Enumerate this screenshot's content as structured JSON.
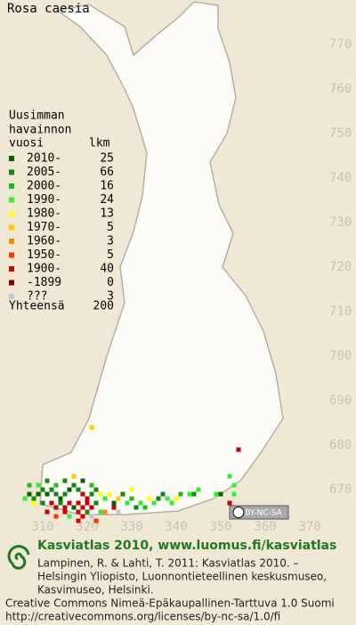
{
  "title": "Rosa caesia",
  "legend": {
    "header": [
      "Uusimman",
      "havainnon"
    ],
    "col_year": "vuosi",
    "col_count": "lkm",
    "items": [
      {
        "label": "2010-",
        "count": 25,
        "color": "#006400"
      },
      {
        "label": "2005-",
        "count": 66,
        "color": "#118811"
      },
      {
        "label": "2000-",
        "count": 16,
        "color": "#22bb22"
      },
      {
        "label": "1990-",
        "count": 24,
        "color": "#33ee33"
      },
      {
        "label": "1980-",
        "count": 13,
        "color": "#ffff00"
      },
      {
        "label": "1970-",
        "count": 5,
        "color": "#ffcc00"
      },
      {
        "label": "1960-",
        "count": 3,
        "color": "#ff8800"
      },
      {
        "label": "1950-",
        "count": 5,
        "color": "#ff3300"
      },
      {
        "label": "1900-",
        "count": 40,
        "color": "#cc0000"
      },
      {
        "label": "-1899",
        "count": 0,
        "color": "#880000"
      },
      {
        "label": "???",
        "count": 3,
        "color": "#c8c8c8"
      }
    ],
    "total_label": "Yhteensä",
    "total": 200
  },
  "yticks": [
    770,
    760,
    750,
    740,
    730,
    720,
    710,
    700,
    690,
    680,
    670
  ],
  "xticks": [
    310,
    320,
    330,
    340,
    350,
    360,
    370
  ],
  "license_badge": "BY-NC-SA",
  "footer": {
    "heading": "Kasviatlas 2010, www.luomus.fi/kasviatlas",
    "citation": [
      "Lampinen, R. & Lahti, T. 2011: Kasviatlas 2010. –",
      "Helsingin Yliopisto, Luonnontieteellinen keskusmuseo,",
      "Kasvimuseo, Helsinki."
    ],
    "license": [
      "Creative Commons Nimeä-Epäkaupallinen-Tarttuva 1.0 Suomi",
      "http://creativecommons.org/licenses/by-nc-sa/1.0/fi"
    ]
  },
  "cells": [
    [
      307,
      669,
      0
    ],
    [
      308,
      668,
      1
    ],
    [
      309,
      669,
      0
    ],
    [
      310,
      670,
      1
    ],
    [
      311,
      669,
      0
    ],
    [
      312,
      670,
      1
    ],
    [
      313,
      669,
      1
    ],
    [
      314,
      668,
      0
    ],
    [
      315,
      669,
      1
    ],
    [
      316,
      670,
      0
    ],
    [
      317,
      671,
      1
    ],
    [
      318,
      670,
      1
    ],
    [
      319,
      669,
      8
    ],
    [
      320,
      668,
      8
    ],
    [
      321,
      669,
      1
    ],
    [
      322,
      670,
      1
    ],
    [
      308,
      667,
      4
    ],
    [
      310,
      667,
      1
    ],
    [
      312,
      667,
      8
    ],
    [
      313,
      666,
      8
    ],
    [
      314,
      667,
      1
    ],
    [
      315,
      666,
      8
    ],
    [
      316,
      667,
      8
    ],
    [
      317,
      666,
      0
    ],
    [
      318,
      667,
      8
    ],
    [
      319,
      666,
      8
    ],
    [
      320,
      667,
      8
    ],
    [
      321,
      666,
      8
    ],
    [
      322,
      667,
      1
    ],
    [
      311,
      665,
      8
    ],
    [
      313,
      664,
      7
    ],
    [
      315,
      665,
      8
    ],
    [
      316,
      664,
      3
    ],
    [
      318,
      665,
      8
    ],
    [
      319,
      664,
      8
    ],
    [
      320,
      665,
      1
    ],
    [
      321,
      664,
      10
    ],
    [
      323,
      665,
      3
    ],
    [
      306,
      668,
      3
    ],
    [
      307,
      671,
      2
    ],
    [
      309,
      671,
      3
    ],
    [
      311,
      672,
      1
    ],
    [
      313,
      671,
      2
    ],
    [
      315,
      672,
      1
    ],
    [
      317,
      673,
      5
    ],
    [
      319,
      672,
      0
    ],
    [
      321,
      671,
      2
    ],
    [
      323,
      669,
      4
    ],
    [
      324,
      668,
      3
    ],
    [
      325,
      669,
      4
    ],
    [
      326,
      667,
      0
    ],
    [
      327,
      668,
      5
    ],
    [
      328,
      669,
      1
    ],
    [
      329,
      667,
      3
    ],
    [
      330,
      668,
      2
    ],
    [
      331,
      666,
      1
    ],
    [
      332,
      667,
      3
    ],
    [
      333,
      666,
      2
    ],
    [
      334,
      668,
      4
    ],
    [
      335,
      667,
      3
    ],
    [
      336,
      668,
      1
    ],
    [
      337,
      669,
      1
    ],
    [
      338,
      668,
      3
    ],
    [
      339,
      667,
      3
    ],
    [
      340,
      668,
      4
    ],
    [
      341,
      669,
      2
    ],
    [
      343,
      669,
      3
    ],
    [
      330,
      670,
      4
    ],
    [
      326,
      666,
      8
    ],
    [
      324,
      665,
      6
    ],
    [
      322,
      663,
      7
    ],
    [
      318,
      663,
      8
    ],
    [
      321,
      684,
      5
    ],
    [
      354,
      679,
      8
    ],
    [
      352,
      673,
      3
    ],
    [
      353,
      671,
      3
    ],
    [
      353,
      669,
      3
    ],
    [
      352,
      667,
      8
    ],
    [
      350,
      669,
      0
    ],
    [
      349,
      669,
      3
    ],
    [
      344,
      669,
      1
    ],
    [
      327,
      665,
      10
    ],
    [
      345,
      670,
      3
    ]
  ]
}
